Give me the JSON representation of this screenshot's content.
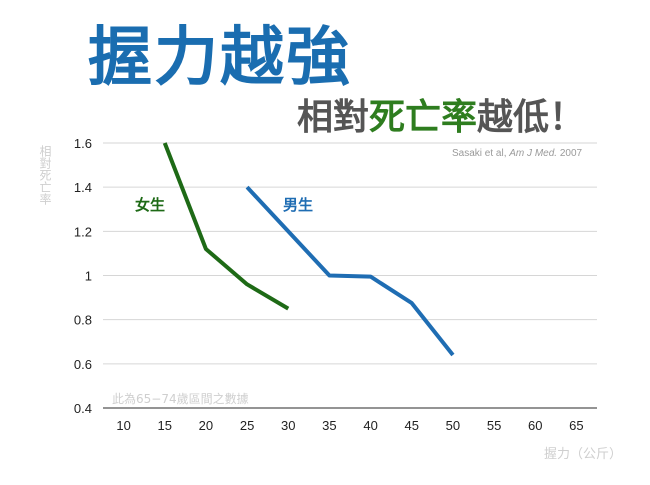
{
  "header": {
    "title": "握力越強",
    "subtitle_part1": "相對",
    "subtitle_part2": "死亡率",
    "subtitle_part3": "越低！",
    "citation_prefix": "Sasaki et al, ",
    "citation_journal": "Am J Med.",
    "citation_year": " 2007"
  },
  "colors": {
    "title": "#1a6db0",
    "female": "#1e6a16",
    "male": "#1f6db3",
    "highlight": "#2e7d1f"
  },
  "chart_data": {
    "type": "line",
    "title": "",
    "xlabel": "握力（公斤）",
    "ylabel": "相對死亡率",
    "note": "此為65−74歲區間之數據",
    "x_ticks": [
      10,
      15,
      20,
      25,
      30,
      35,
      40,
      45,
      50,
      55,
      60,
      65
    ],
    "y_ticks": [
      "1.6",
      "1.4",
      "1.2",
      "1",
      "0.8",
      "0.6",
      "0.4"
    ],
    "xlim": [
      7.5,
      67.5
    ],
    "ylim": [
      0.4,
      1.6
    ],
    "grid": true,
    "series": [
      {
        "name": "女生",
        "x": [
          15,
          20,
          25,
          30
        ],
        "y": [
          1.6,
          1.12,
          0.96,
          0.85
        ]
      },
      {
        "name": "男生",
        "x": [
          25,
          35,
          40,
          45,
          50
        ],
        "y": [
          1.4,
          1.0,
          0.995,
          0.875,
          0.64
        ]
      }
    ]
  }
}
